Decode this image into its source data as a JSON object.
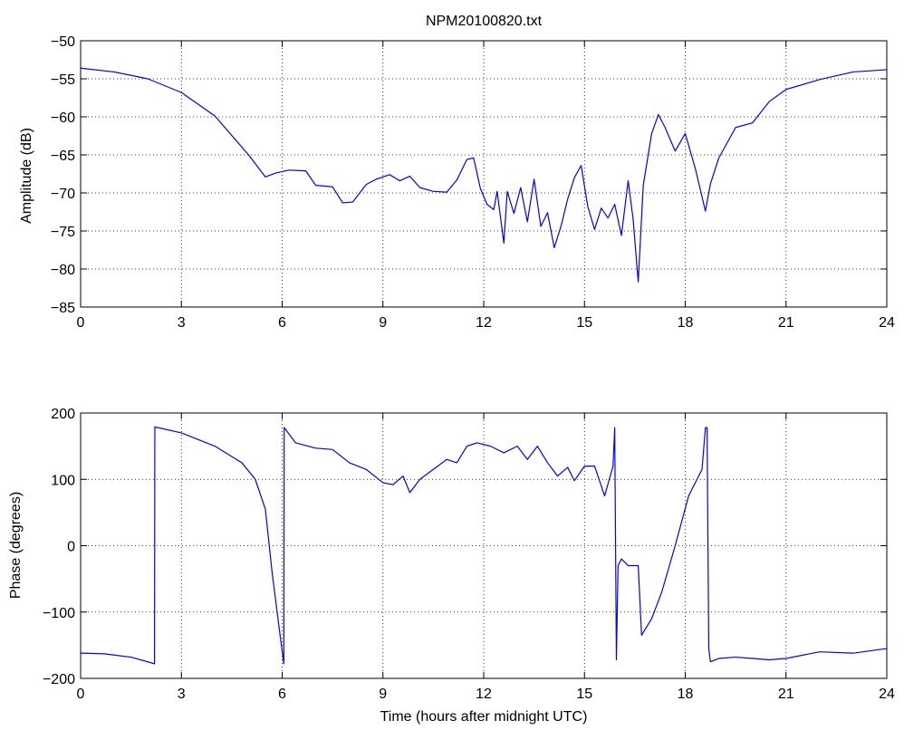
{
  "figure": {
    "title": "NPM20100820.txt",
    "line_color": "#0000ff"
  },
  "chart_data": [
    {
      "type": "line",
      "title": "NPM20100820.txt",
      "xlabel": "",
      "ylabel": "Amplitude (dB)",
      "xlim": [
        0,
        24
      ],
      "ylim": [
        -85,
        -50
      ],
      "xticks": [
        0,
        3,
        6,
        9,
        12,
        15,
        18,
        21,
        24
      ],
      "yticks": [
        -85,
        -80,
        -75,
        -70,
        -65,
        -60,
        -55,
        -50
      ],
      "grid": true,
      "series": [
        {
          "x": [
            0,
            1,
            2,
            3,
            4,
            5,
            5.5,
            5.8,
            6.2,
            6.7,
            7.0,
            7.5,
            7.8,
            8.1,
            8.5,
            8.8,
            9.2,
            9.5,
            9.8,
            10.1,
            10.5,
            10.9,
            11.2,
            11.5,
            11.7,
            11.9,
            12.1,
            12.3,
            12.4,
            12.6,
            12.7,
            12.9,
            13.1,
            13.3,
            13.5,
            13.7,
            13.9,
            14.1,
            14.3,
            14.5,
            14.7,
            14.9,
            15.1,
            15.3,
            15.5,
            15.7,
            15.9,
            16.1,
            16.3,
            16.45,
            16.6,
            16.75,
            17.0,
            17.2,
            17.4,
            17.7,
            18.0,
            18.3,
            18.6,
            18.75,
            19.0,
            19.5,
            20.0,
            20.5,
            21.0,
            22.0,
            23.0,
            24.0
          ],
          "y": [
            -53.6,
            -54.1,
            -55.0,
            -56.8,
            -59.9,
            -65.0,
            -67.9,
            -67.4,
            -67.0,
            -67.1,
            -69.0,
            -69.2,
            -71.3,
            -71.2,
            -68.9,
            -68.2,
            -67.6,
            -68.4,
            -67.8,
            -69.3,
            -69.8,
            -69.9,
            -68.3,
            -65.6,
            -65.4,
            -69.4,
            -71.5,
            -72.2,
            -69.8,
            -76.6,
            -69.8,
            -72.7,
            -69.3,
            -73.8,
            -68.2,
            -74.4,
            -72.6,
            -77.2,
            -74.4,
            -70.8,
            -68.0,
            -66.4,
            -71.8,
            -74.8,
            -72.0,
            -73.3,
            -71.5,
            -75.6,
            -68.4,
            -73.5,
            -81.7,
            -69.0,
            -62.2,
            -59.7,
            -61.4,
            -64.5,
            -62.2,
            -66.8,
            -72.4,
            -68.8,
            -65.4,
            -61.4,
            -60.8,
            -58.0,
            -56.4,
            -55.1,
            -54.1,
            -53.8
          ]
        }
      ]
    },
    {
      "type": "line",
      "title": "",
      "xlabel": "Time (hours after midnight UTC)",
      "ylabel": "Phase (degrees)",
      "xlim": [
        0,
        24
      ],
      "ylim": [
        -200,
        200
      ],
      "xticks": [
        0,
        3,
        6,
        9,
        12,
        15,
        18,
        21,
        24
      ],
      "yticks": [
        -200,
        -100,
        0,
        100,
        200
      ],
      "grid": true,
      "series": [
        {
          "x": [
            0,
            0.7,
            1.5,
            2.2,
            2.21,
            3.0,
            4.0,
            4.8,
            5.2,
            5.5,
            5.7,
            5.9,
            6.05,
            6.06,
            6.4,
            7.0,
            7.5,
            8.0,
            8.5,
            9.0,
            9.3,
            9.6,
            9.8,
            10.1,
            10.5,
            10.9,
            11.2,
            11.5,
            11.8,
            12.2,
            12.6,
            13.0,
            13.3,
            13.6,
            13.9,
            14.2,
            14.5,
            14.7,
            15.0,
            15.3,
            15.6,
            15.85,
            15.9,
            15.95,
            16.0,
            16.1,
            16.3,
            16.6,
            16.7,
            17.0,
            17.3,
            17.7,
            18.1,
            18.5,
            18.6,
            18.65,
            18.7,
            18.75,
            19.0,
            19.5,
            20.0,
            20.5,
            21.0,
            22.0,
            23.0,
            24.0
          ],
          "y": [
            -162,
            -163,
            -168,
            -178,
            179,
            170,
            150,
            125,
            100,
            55,
            -40,
            -120,
            -178,
            178,
            155,
            147,
            145,
            125,
            115,
            95,
            92,
            105,
            80,
            100,
            115,
            130,
            125,
            150,
            155,
            150,
            140,
            150,
            130,
            150,
            125,
            105,
            118,
            98,
            120,
            120,
            75,
            120,
            178,
            -172,
            -30,
            -20,
            -30,
            -30,
            -135,
            -110,
            -70,
            0,
            75,
            115,
            178,
            178,
            -155,
            -175,
            -170,
            -168,
            -170,
            -172,
            -170,
            -160,
            -162,
            -155
          ]
        }
      ]
    }
  ]
}
